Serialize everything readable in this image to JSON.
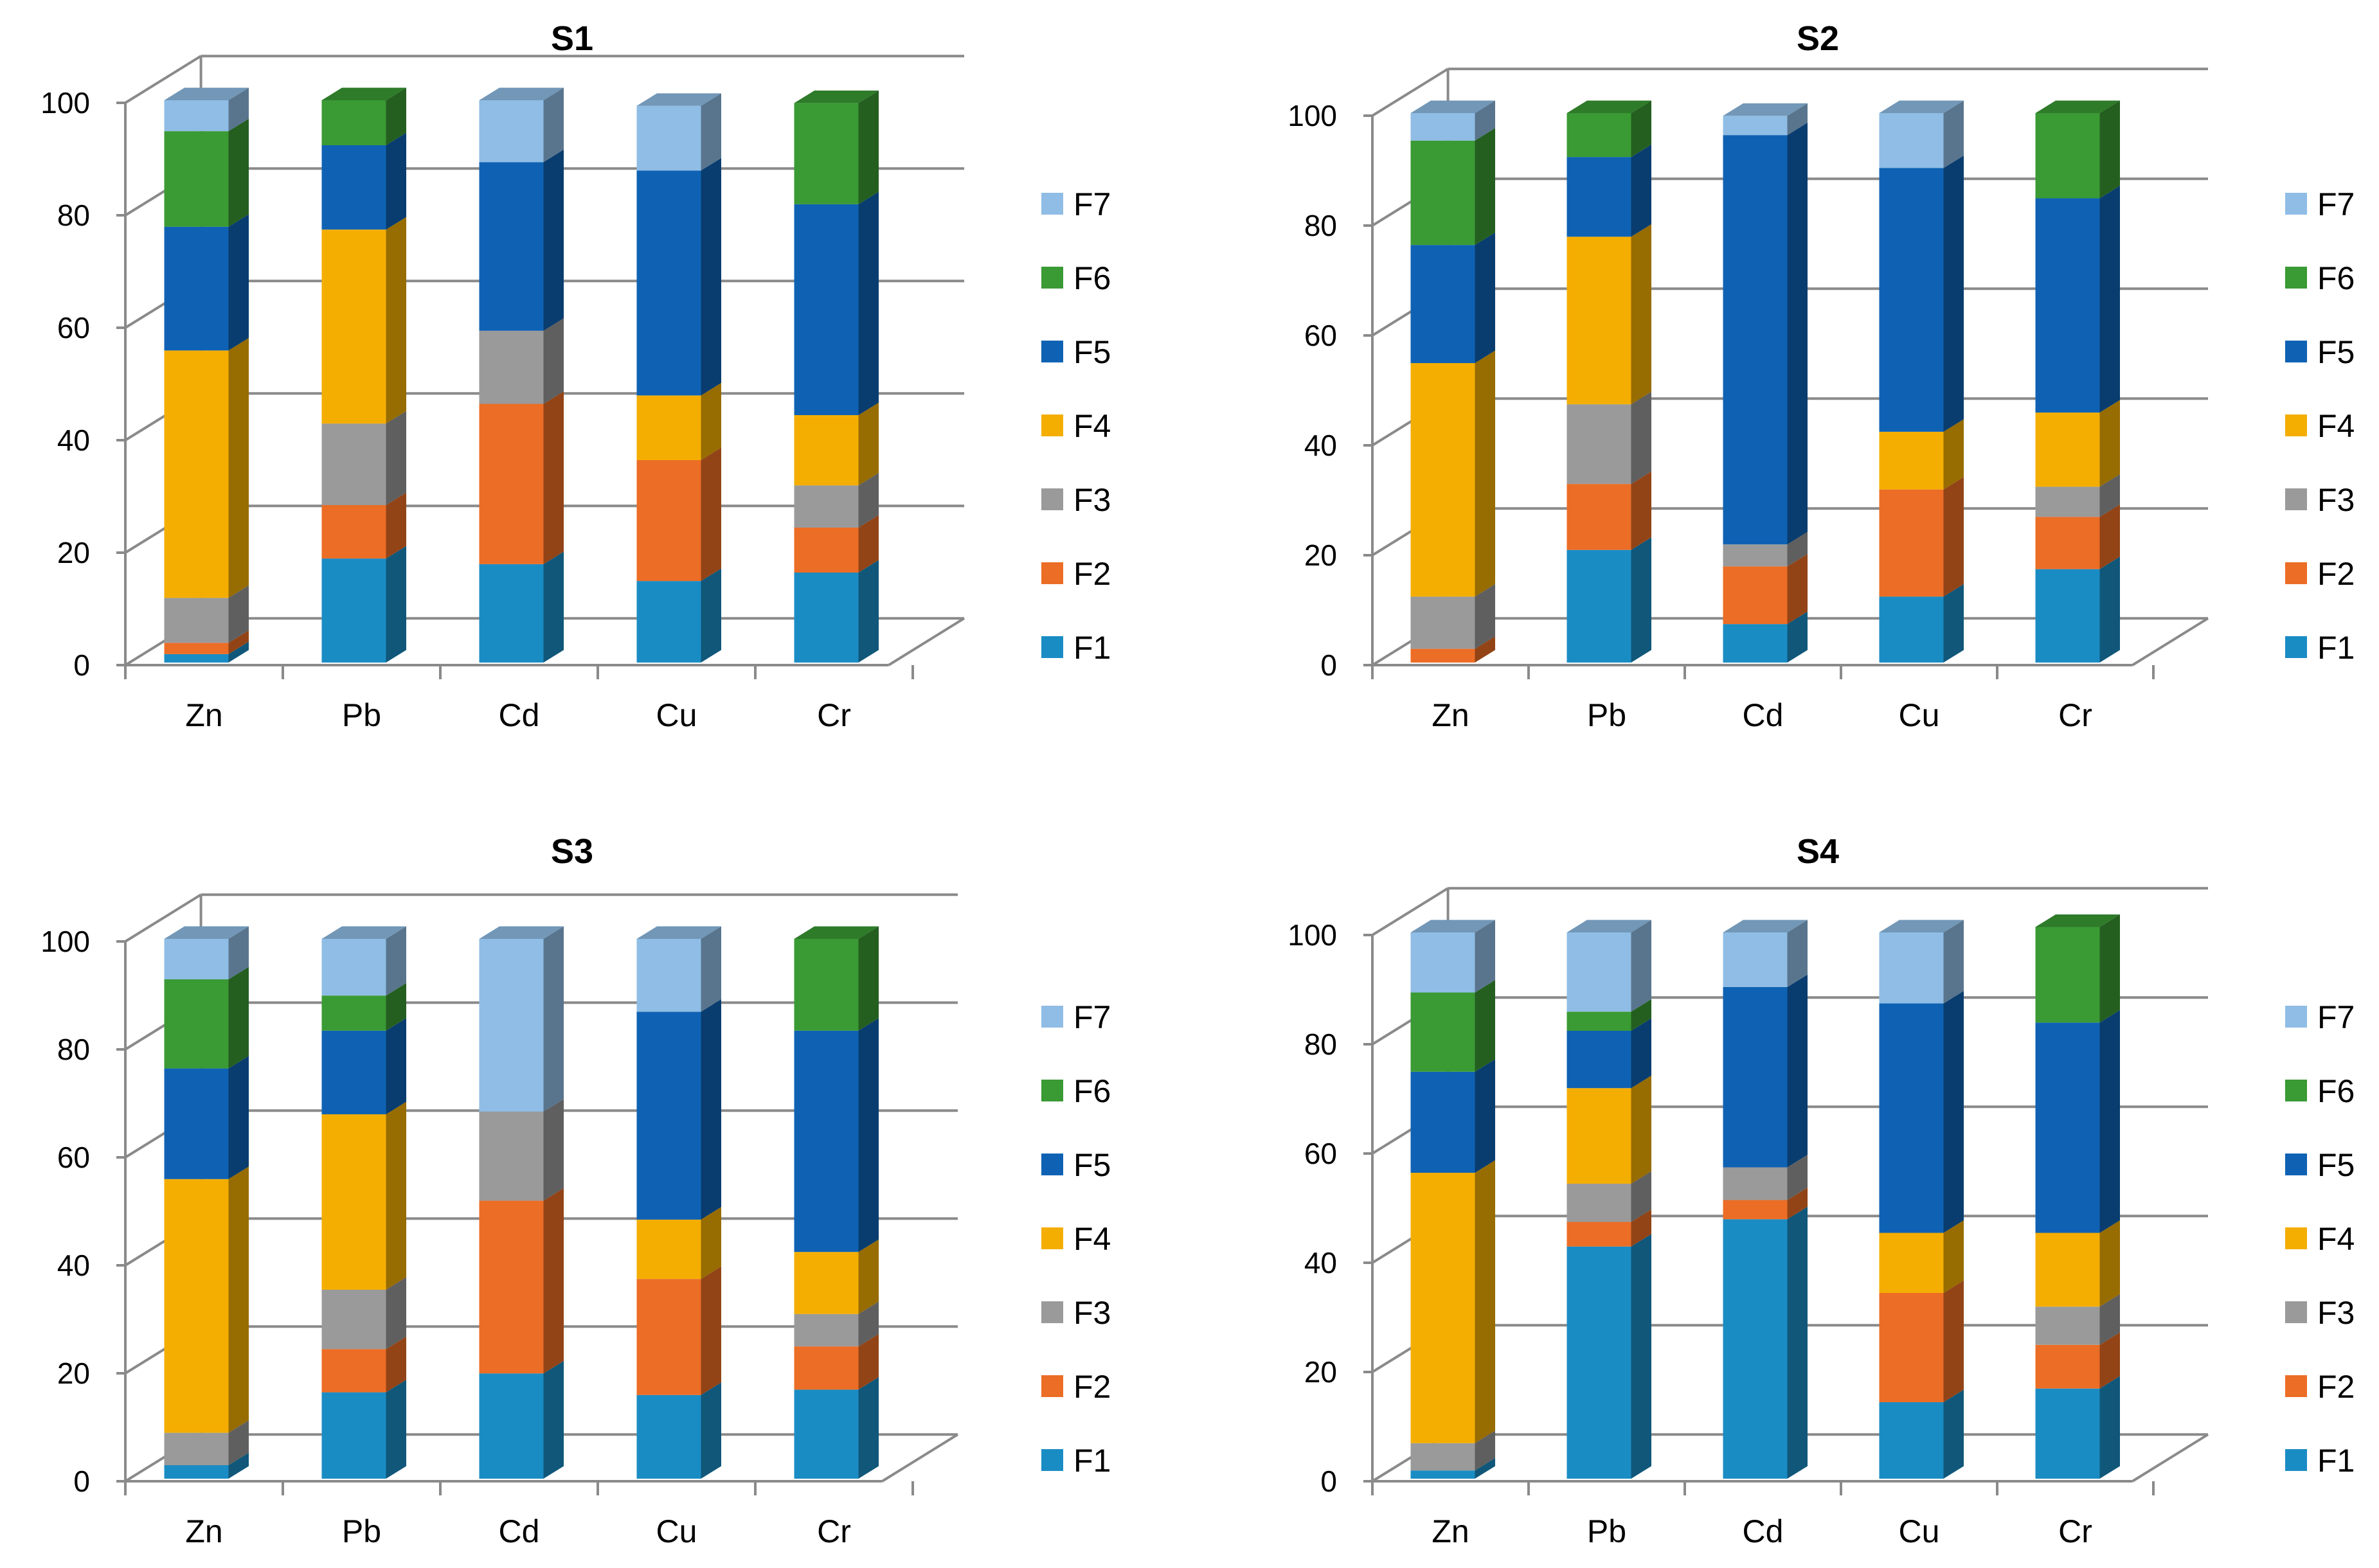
{
  "colors": {
    "F1": "#1a8cc4",
    "F2": "#ec6d25",
    "F3": "#9a9a9a",
    "F4": "#f4ae02",
    "F5": "#0f62b3",
    "F6": "#3a9a34",
    "F7": "#8fbde5"
  },
  "chart_data": [
    {
      "type": "bar",
      "stacked": true,
      "title": "S1",
      "categories": [
        "Zn",
        "Pb",
        "Cd",
        "Cu",
        "Cr"
      ],
      "ylim": [
        0,
        100
      ],
      "yticks": [
        "0",
        "20",
        "40",
        "60",
        "80",
        "100"
      ],
      "legend": [
        "F7",
        "F6",
        "F5",
        "F4",
        "F3",
        "F2",
        "F1"
      ],
      "legend_position": "right",
      "series": [
        {
          "name": "F1",
          "values": [
            1.5,
            18.5,
            17.5,
            14.5,
            16
          ]
        },
        {
          "name": "F2",
          "values": [
            2,
            9.5,
            28.5,
            21.5,
            8
          ]
        },
        {
          "name": "F3",
          "values": [
            8,
            14.5,
            13,
            0,
            7.5
          ]
        },
        {
          "name": "F4",
          "values": [
            44,
            34.5,
            0,
            11.5,
            12.5
          ]
        },
        {
          "name": "F5",
          "values": [
            22,
            15,
            30,
            40,
            37.5
          ]
        },
        {
          "name": "F6",
          "values": [
            17,
            8,
            0,
            0,
            18
          ]
        },
        {
          "name": "F7",
          "values": [
            5.5,
            0,
            11,
            11.5,
            0
          ]
        }
      ]
    },
    {
      "type": "bar",
      "stacked": true,
      "title": "S2",
      "categories": [
        "Zn",
        "Pb",
        "Cd",
        "Cu",
        "Cr"
      ],
      "ylim": [
        0,
        100
      ],
      "yticks": [
        "0",
        "20",
        "40",
        "60",
        "80",
        "100"
      ],
      "legend": [
        "F7",
        "F6",
        "F5",
        "F4",
        "F3",
        "F2",
        "F1"
      ],
      "legend_position": "right",
      "series": [
        {
          "name": "F1",
          "values": [
            0,
            20.5,
            7,
            12,
            17
          ]
        },
        {
          "name": "F2",
          "values": [
            2.5,
            12,
            10.5,
            19.5,
            9.5
          ]
        },
        {
          "name": "F3",
          "values": [
            9.5,
            14.5,
            4,
            0,
            5.5
          ]
        },
        {
          "name": "F4",
          "values": [
            42.5,
            30.5,
            0,
            10.5,
            13.5
          ]
        },
        {
          "name": "F5",
          "values": [
            21.5,
            14.5,
            74.5,
            48,
            39
          ]
        },
        {
          "name": "F6",
          "values": [
            19,
            8,
            0,
            0,
            15.5
          ]
        },
        {
          "name": "F7",
          "values": [
            5,
            0,
            3.5,
            10,
            0
          ]
        }
      ]
    },
    {
      "type": "bar",
      "stacked": true,
      "title": "S3",
      "categories": [
        "Zn",
        "Pb",
        "Cd",
        "Cu",
        "Cr"
      ],
      "ylim": [
        0,
        100
      ],
      "yticks": [
        "0",
        "20",
        "40",
        "60",
        "80",
        "100"
      ],
      "legend": [
        "F7",
        "F6",
        "F5",
        "F4",
        "F3",
        "F2",
        "F1"
      ],
      "legend_position": "right",
      "series": [
        {
          "name": "F1",
          "values": [
            2.5,
            16,
            19.5,
            15.5,
            16.5
          ]
        },
        {
          "name": "F2",
          "values": [
            0,
            8,
            32,
            21.5,
            8
          ]
        },
        {
          "name": "F3",
          "values": [
            6,
            11,
            16.5,
            0,
            6
          ]
        },
        {
          "name": "F4",
          "values": [
            47,
            32.5,
            0,
            11,
            11.5
          ]
        },
        {
          "name": "F5",
          "values": [
            20.5,
            15.5,
            0,
            38.5,
            41
          ]
        },
        {
          "name": "F6",
          "values": [
            16.5,
            6.5,
            0,
            0,
            17
          ]
        },
        {
          "name": "F7",
          "values": [
            7.5,
            10.5,
            32,
            13.5,
            0
          ]
        }
      ]
    },
    {
      "type": "bar",
      "stacked": true,
      "title": "S4",
      "categories": [
        "Zn",
        "Pb",
        "Cd",
        "Cu",
        "Cr"
      ],
      "ylim": [
        0,
        100
      ],
      "yticks": [
        "0",
        "20",
        "40",
        "60",
        "80",
        "100"
      ],
      "legend": [
        "F7",
        "F6",
        "F5",
        "F4",
        "F3",
        "F2",
        "F1"
      ],
      "legend_position": "right",
      "series": [
        {
          "name": "F1",
          "values": [
            1.5,
            42.5,
            47.5,
            14,
            16.5
          ]
        },
        {
          "name": "F2",
          "values": [
            0,
            4.5,
            3.5,
            20,
            8
          ]
        },
        {
          "name": "F3",
          "values": [
            5,
            7,
            6,
            0,
            7
          ]
        },
        {
          "name": "F4",
          "values": [
            49.5,
            17.5,
            0,
            11,
            13.5
          ]
        },
        {
          "name": "F5",
          "values": [
            18.5,
            10.5,
            33,
            42,
            38.5
          ]
        },
        {
          "name": "F6",
          "values": [
            14.5,
            3.5,
            0,
            0,
            17.5
          ]
        },
        {
          "name": "F7",
          "values": [
            11,
            14.5,
            10,
            13,
            0
          ]
        }
      ]
    }
  ]
}
